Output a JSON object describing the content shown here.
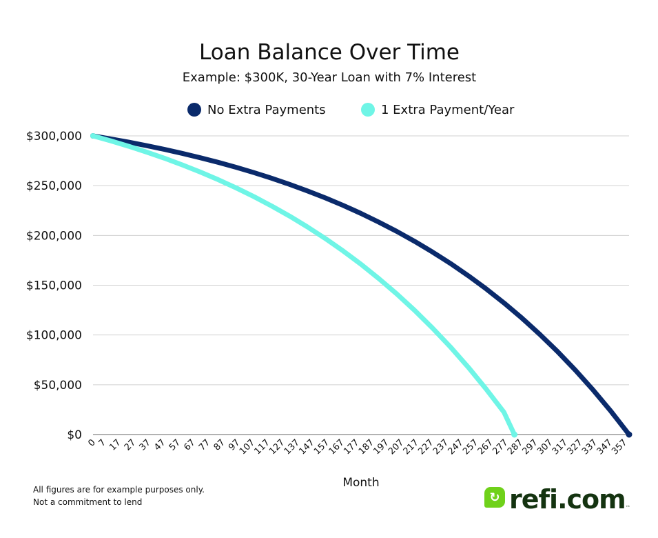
{
  "chart_data": {
    "type": "line",
    "title": "Loan Balance Over Time",
    "subtitle": "Example: $300K, 30-Year Loan with 7% Interest",
    "xlabel": "Month",
    "ylabel": "",
    "xlim": [
      0,
      360
    ],
    "ylim": [
      0,
      300000
    ],
    "yticks": [
      0,
      50000,
      100000,
      150000,
      200000,
      250000,
      300000
    ],
    "ytick_labels": [
      "$0",
      "$50,000",
      "$100,000",
      "$150,000",
      "$200,000",
      "$250,000",
      "$300,000"
    ],
    "xtick_labels": [
      "0",
      "7",
      "17",
      "27",
      "37",
      "47",
      "57",
      "67",
      "77",
      "87",
      "97",
      "107",
      "117",
      "127",
      "137",
      "147",
      "157",
      "167",
      "177",
      "187",
      "197",
      "207",
      "217",
      "227",
      "237",
      "247",
      "257",
      "267",
      "277",
      "287",
      "297",
      "307",
      "317",
      "327",
      "337",
      "347",
      "357"
    ],
    "xtick_values": [
      0,
      7,
      17,
      27,
      37,
      47,
      57,
      67,
      77,
      87,
      97,
      107,
      117,
      127,
      137,
      147,
      157,
      167,
      177,
      187,
      197,
      207,
      217,
      227,
      237,
      247,
      257,
      267,
      277,
      287,
      297,
      307,
      317,
      327,
      337,
      347,
      357
    ],
    "grid": "horizontal",
    "legend_position": "top",
    "series": [
      {
        "name": "No Extra Payments",
        "color": "#0a2a6b",
        "x": [
          0,
          12,
          24,
          36,
          48,
          60,
          72,
          84,
          96,
          108,
          120,
          132,
          144,
          156,
          168,
          180,
          192,
          204,
          216,
          228,
          240,
          252,
          264,
          276,
          288,
          300,
          312,
          324,
          336,
          348,
          360
        ],
        "y": [
          300000,
          296952,
          293684,
          290179,
          286421,
          282391,
          278070,
          273437,
          268469,
          263141,
          257429,
          251303,
          244735,
          237692,
          230139,
          222041,
          213358,
          204047,
          194062,
          183355,
          171875,
          159565,
          146365,
          132211,
          117034,
          100759,
          83308,
          64595,
          44530,
          23014,
          0
        ]
      },
      {
        "name": "1 Extra Payment/Year",
        "color": "#6ff5e6",
        "x": [
          0,
          12,
          24,
          36,
          48,
          60,
          72,
          84,
          96,
          108,
          120,
          132,
          144,
          156,
          168,
          180,
          192,
          204,
          216,
          228,
          240,
          252,
          264,
          276,
          283
        ],
        "y": [
          300000,
          294956,
          289547,
          283747,
          277528,
          270859,
          263708,
          256040,
          247818,
          239002,
          229549,
          219412,
          208542,
          196886,
          184388,
          170986,
          156616,
          141207,
          124684,
          106967,
          87969,
          67597,
          45753,
          22329,
          0
        ]
      }
    ]
  },
  "footnote": [
    "All figures are for example purposes only.",
    "Not a commitment to lend"
  ],
  "logo": {
    "text": "refi.com",
    "tm": "™"
  }
}
